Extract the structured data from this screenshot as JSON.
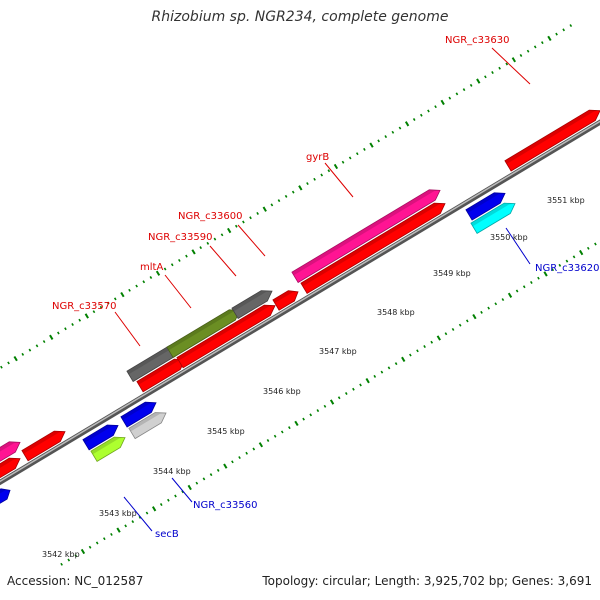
{
  "title": "Rhizobium sp. NGR234, complete genome",
  "accession": "Accession: NC_012587",
  "summary": "Topology: circular; Length: 3,925,702 bp; Genes: 3,691",
  "colors": {
    "red": "#ff0000",
    "pink": "#ff1493",
    "blue": "#0000ee",
    "cyan": "#00ffff",
    "gray": "#666666",
    "lightgray": "#d0d0d0",
    "olive": "#6b8e23",
    "lime": "#adff2f",
    "tick": "#008000",
    "backbone": "#808080",
    "label_red": "#dd0000",
    "label_blue": "#0000cc"
  },
  "scale_labels": [
    "3542 kbp",
    "3543 kbp",
    "3544 kbp",
    "3545 kbp",
    "3546 kbp",
    "3547 kbp",
    "3548 kbp",
    "3549 kbp",
    "3550 kbp",
    "3551 kbp"
  ],
  "gene_labels": [
    {
      "name": "NGR_c33630",
      "color": "red"
    },
    {
      "name": "gyrB",
      "color": "red"
    },
    {
      "name": "NGR_c33600",
      "color": "red"
    },
    {
      "name": "NGR_c33590",
      "color": "red"
    },
    {
      "name": "mltA",
      "color": "red"
    },
    {
      "name": "NGR_c33570",
      "color": "red"
    },
    {
      "name": "NGR_c33620",
      "color": "blue"
    },
    {
      "name": "NGR_c33560",
      "color": "blue"
    },
    {
      "name": "secB",
      "color": "blue"
    }
  ]
}
